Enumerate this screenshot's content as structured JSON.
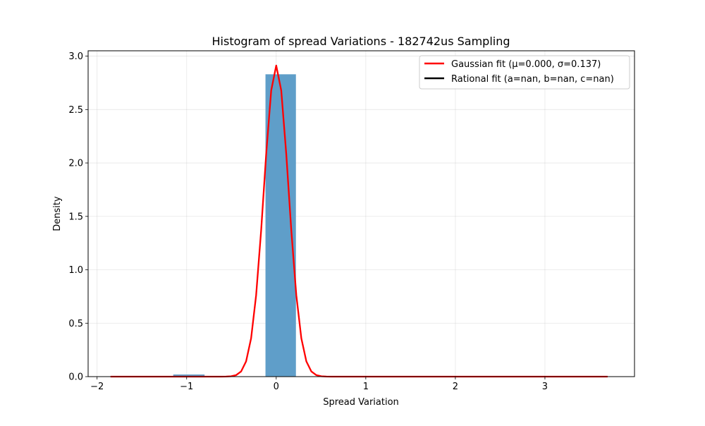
{
  "chart_data": {
    "type": "bar",
    "title": "Histogram of spread Variations - 182742us Sampling",
    "xlabel": "Spread Variation",
    "ylabel": "Density",
    "xlim": [
      -2.1,
      4.0
    ],
    "ylim": [
      0.0,
      3.05
    ],
    "xticks": [
      -2,
      -1,
      0,
      1,
      2,
      3
    ],
    "yticks": [
      0.0,
      0.5,
      1.0,
      1.5,
      2.0,
      2.5,
      3.0
    ],
    "xtick_labels": [
      "−2",
      "−1",
      "0",
      "1",
      "2",
      "3"
    ],
    "ytick_labels": [
      "0.0",
      "0.5",
      "1.0",
      "1.5",
      "2.0",
      "2.5",
      "3.0"
    ],
    "grid": true,
    "legend_position": "upper right",
    "histogram": {
      "color": "#5f9ec9",
      "bins": [
        {
          "x0": -1.85,
          "x1": -1.5,
          "density": 0.0
        },
        {
          "x0": -1.5,
          "x1": -1.15,
          "density": 0.0
        },
        {
          "x0": -1.15,
          "x1": -0.8,
          "density": 0.02
        },
        {
          "x0": -0.8,
          "x1": -0.45,
          "density": 0.0
        },
        {
          "x0": -0.45,
          "x1": -0.12,
          "density": 0.0
        },
        {
          "x0": -0.12,
          "x1": 0.22,
          "density": 2.83
        },
        {
          "x0": 0.22,
          "x1": 0.57,
          "density": 0.003
        },
        {
          "x0": 0.57,
          "x1": 0.92,
          "density": 0.003
        },
        {
          "x0": 0.92,
          "x1": 1.27,
          "density": 0.003
        },
        {
          "x0": 1.27,
          "x1": 1.62,
          "density": 0.0
        },
        {
          "x0": 1.62,
          "x1": 1.97,
          "density": 0.0
        },
        {
          "x0": 1.97,
          "x1": 2.32,
          "density": 0.0
        },
        {
          "x0": 2.32,
          "x1": 2.67,
          "density": 0.0
        },
        {
          "x0": 2.67,
          "x1": 3.02,
          "density": 0.0
        },
        {
          "x0": 3.02,
          "x1": 3.37,
          "density": 0.0
        },
        {
          "x0": 3.37,
          "x1": 3.72,
          "density": 0.003
        }
      ]
    },
    "series": [
      {
        "name": "Gaussian fit (μ=0.000, σ=0.137)",
        "color": "#ff0000",
        "mu": 0.0,
        "sigma": 0.137,
        "x_range": [
          -1.85,
          3.7
        ]
      },
      {
        "name": "Rational fit (a=nan, b=nan, c=nan)",
        "color": "#000000"
      }
    ]
  }
}
